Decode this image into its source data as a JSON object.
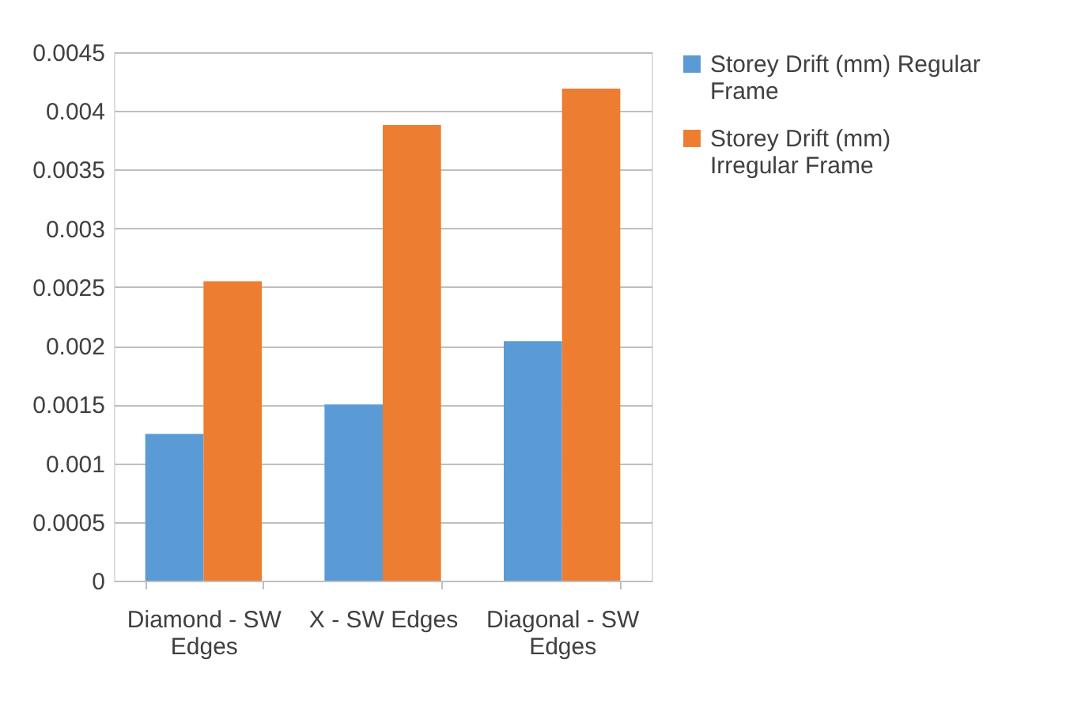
{
  "chart_data": {
    "type": "bar",
    "categories": [
      "Diamond - SW Edges",
      "X - SW Edges",
      "Diagonal - SW Edges"
    ],
    "series": [
      {
        "name": "Storey Drift (mm) Regular Frame",
        "color": "#5b9bd5",
        "values": [
          0.00125,
          0.0015,
          0.00204
        ]
      },
      {
        "name": "Storey Drift (mm) Irregular Frame",
        "color": "#ed7d31",
        "values": [
          0.00255,
          0.00388,
          0.00419
        ]
      }
    ],
    "ylim": [
      0,
      0.0045
    ],
    "yticks": [
      0,
      0.0005,
      0.001,
      0.0015,
      0.002,
      0.0025,
      0.003,
      0.0035,
      0.004,
      0.0045
    ],
    "grid": "y",
    "legend": "right"
  }
}
